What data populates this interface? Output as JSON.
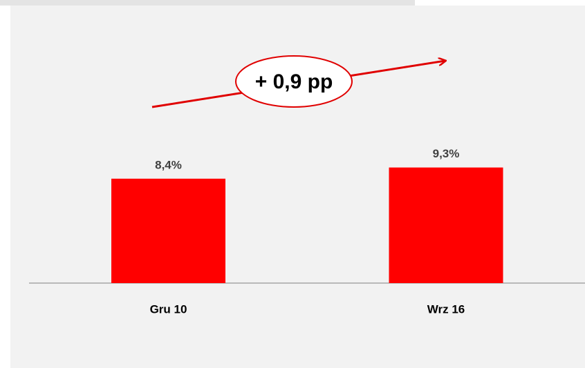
{
  "chart_data": {
    "type": "bar",
    "categories": [
      "Gru 10",
      "Wrz 16"
    ],
    "values": [
      8.4,
      9.3
    ],
    "value_labels": [
      "8,4%",
      "9,3%"
    ],
    "color": "#ff0000",
    "annotation": "+ 0,9 pp"
  }
}
